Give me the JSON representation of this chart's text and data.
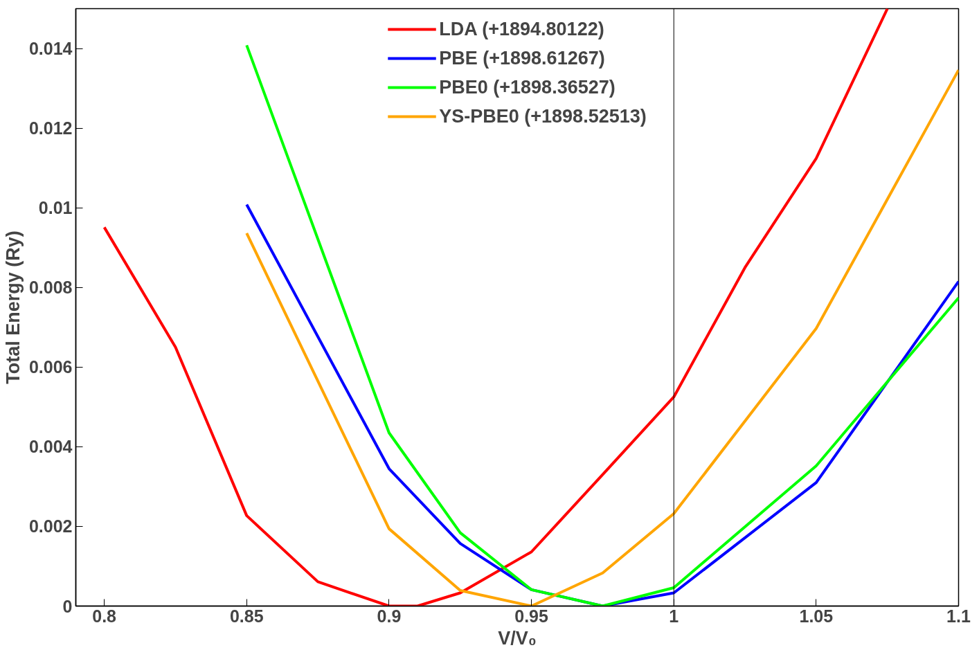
{
  "chart_data": {
    "type": "line",
    "xlabel": "V/V₀",
    "ylabel": "Total Energy (Ry)",
    "xlim": [
      0.79,
      1.1
    ],
    "xticks": [
      0.8,
      0.85,
      0.9,
      0.95,
      1,
      1.05,
      1.1
    ],
    "ylim": [
      0,
      0.015
    ],
    "yticks": [
      0,
      0.002,
      0.004,
      0.006,
      0.008,
      0.01,
      0.012,
      0.014
    ],
    "grid": false,
    "legend": "top",
    "marker": "none",
    "line_style": "solid",
    "ref_lines": [
      {
        "axis": "x",
        "value": 1,
        "color": "#000000"
      }
    ],
    "series": [
      {
        "name": "LDA (+1894.80122)",
        "color": "#ff0000",
        "x": [
          0.8,
          0.825,
          0.85,
          0.875,
          0.9,
          0.91,
          0.925,
          0.95,
          0.975,
          1.0,
          1.025,
          1.05,
          1.075
        ],
        "values": [
          0.00951,
          0.0065,
          0.00227,
          0.00061,
          0.0,
          0.0,
          0.00033,
          0.00136,
          0.0033,
          0.00525,
          0.0085,
          0.01124,
          0.015
        ]
      },
      {
        "name": "PBE (+1898.61267)",
        "color": "#0000ff",
        "x": [
          0.85,
          0.9,
          0.925,
          0.95,
          0.975,
          1.0,
          1.05,
          1.1
        ],
        "values": [
          0.01008,
          0.00345,
          0.00157,
          0.00041,
          0.0,
          0.00033,
          0.0031,
          0.00815
        ]
      },
      {
        "name": "PBE0 (+1898.36527)",
        "color": "#00ff00",
        "x": [
          0.85,
          0.9,
          0.925,
          0.95,
          0.975,
          1.0,
          1.05,
          1.1
        ],
        "values": [
          0.01408,
          0.00435,
          0.00184,
          0.00041,
          0.0,
          0.00046,
          0.00352,
          0.00774
        ]
      },
      {
        "name": "YS-PBE0 (+1898.52513)",
        "color": "#ffa500",
        "x": [
          0.85,
          0.9,
          0.925,
          0.95,
          0.975,
          1.0,
          1.05,
          1.1
        ],
        "values": [
          0.00936,
          0.00194,
          0.00039,
          0.0,
          0.00083,
          0.00232,
          0.00697,
          0.01346
        ]
      }
    ]
  }
}
